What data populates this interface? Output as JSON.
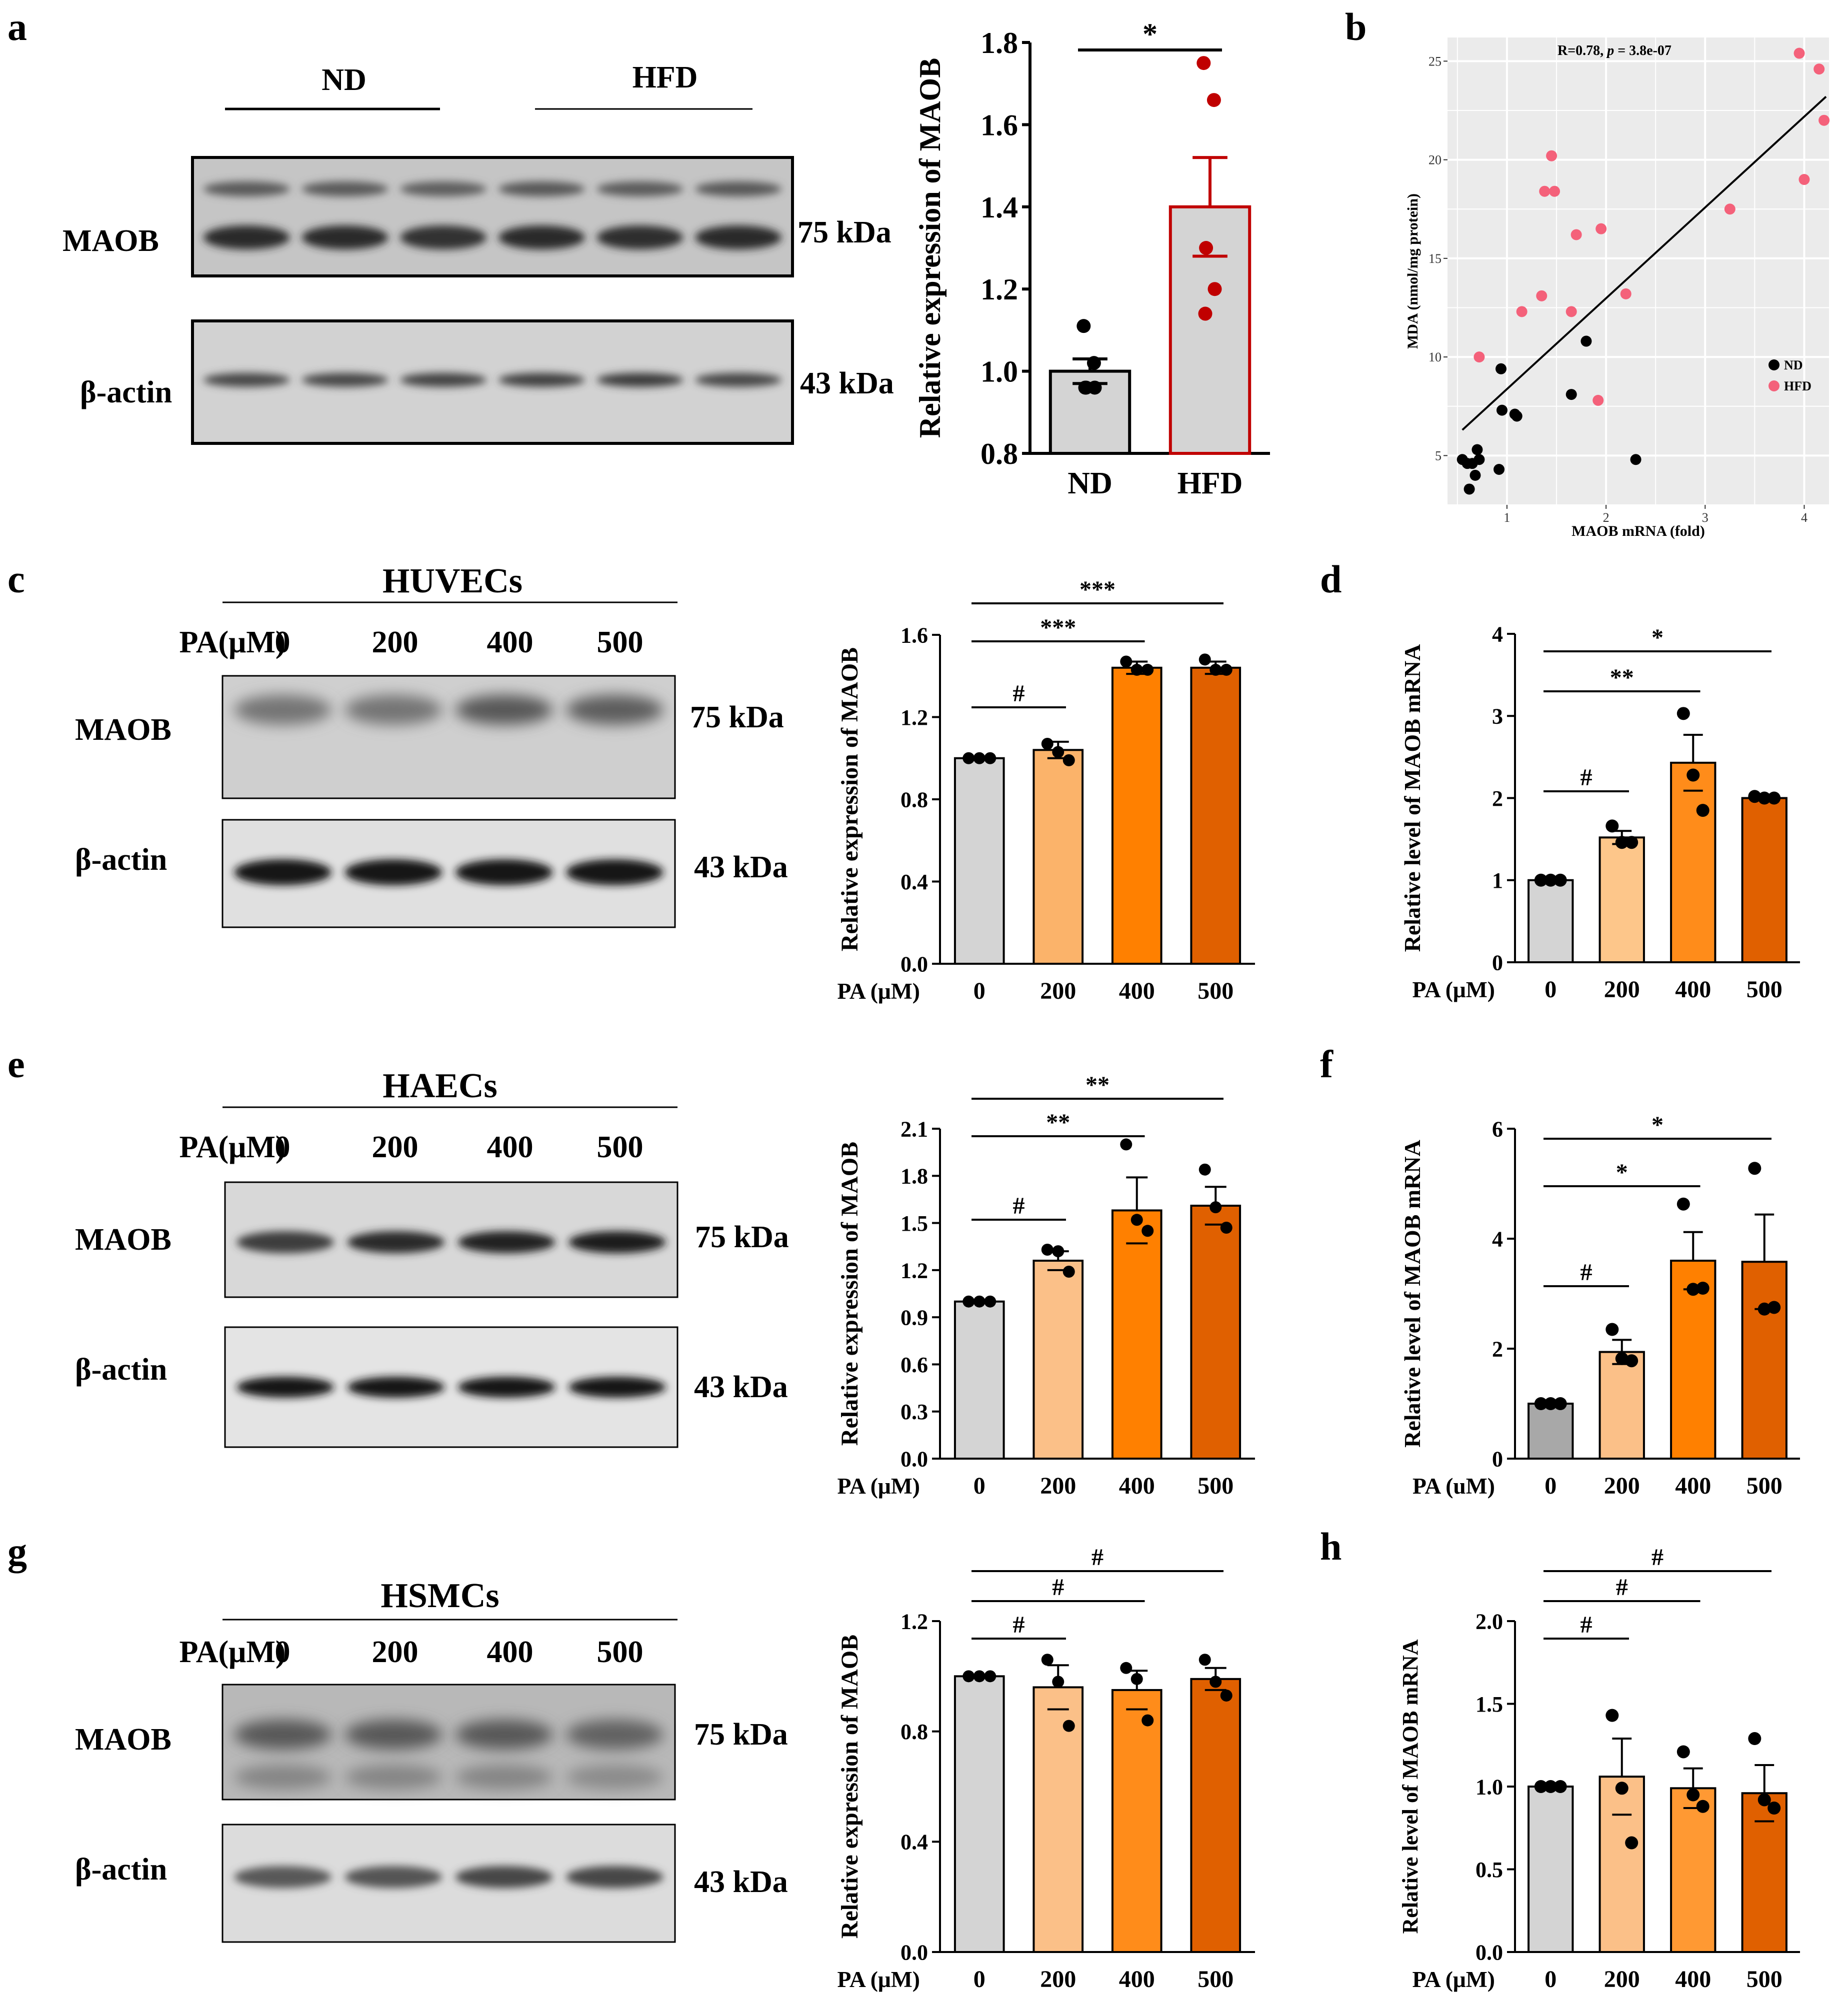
{
  "panel_letters": [
    "a",
    "b",
    "c",
    "d",
    "e",
    "f",
    "g",
    "h"
  ],
  "units": {
    "kda_75": "75 kDa",
    "kda_43": "43 kDa"
  },
  "blots": {
    "a": {
      "groups": [
        "ND",
        "HFD"
      ],
      "rows": [
        "MAOB",
        "β-actin"
      ],
      "maob_intensity": [
        0.85,
        0.85,
        0.82,
        0.86,
        0.84,
        0.86
      ],
      "actin_intensity": [
        0.7,
        0.7,
        0.72,
        0.74,
        0.76,
        0.7
      ]
    },
    "c": {
      "cell": "HUVECs",
      "pa_label": "PA(μM)",
      "conc": [
        "0",
        "200",
        "400",
        "500"
      ],
      "rows": [
        "MAOB",
        "β-actin"
      ],
      "maob_intensity": [
        0.45,
        0.45,
        0.6,
        0.58
      ],
      "actin_intensity": [
        0.95,
        0.95,
        0.95,
        0.95
      ]
    },
    "e": {
      "cell": "HAECs",
      "pa_label": "PA(μM)",
      "conc": [
        "0",
        "200",
        "400",
        "500"
      ],
      "rows": [
        "MAOB",
        "β-actin"
      ],
      "maob_intensity": [
        0.75,
        0.85,
        0.9,
        0.92
      ],
      "actin_intensity": [
        0.95,
        0.95,
        0.95,
        0.95
      ]
    },
    "g": {
      "cell": "HSMCs",
      "pa_label": "PA(μM)",
      "conc": [
        "0",
        "200",
        "400",
        "500"
      ],
      "rows": [
        "MAOB",
        "β-actin"
      ],
      "maob_intensity": [
        0.6,
        0.6,
        0.6,
        0.55
      ],
      "actin_intensity": [
        0.6,
        0.62,
        0.7,
        0.7
      ]
    }
  },
  "chart_data": [
    {
      "id": "a_bar",
      "type": "bar",
      "ylabel": "Relative expression of MAOB",
      "categories": [
        "ND",
        "HFD"
      ],
      "values": [
        1.0,
        1.4
      ],
      "sem": [
        0.03,
        0.12
      ],
      "ylim": [
        0.8,
        1.8
      ],
      "yticks": [
        "0.8",
        "1.0",
        "1.2",
        "1.4",
        "1.6",
        "1.8"
      ],
      "points": [
        [
          1.11,
          1.02,
          0.96,
          0.96,
          0.96
        ],
        [
          1.75,
          1.66,
          1.3,
          1.2,
          1.14
        ]
      ],
      "fill": [
        "#d4d4d4",
        "#d4d4d4"
      ],
      "edge": [
        "#000000",
        "#c00000"
      ],
      "point_colors": [
        "#000000",
        "#c00000"
      ],
      "sig": [
        {
          "from": 0,
          "to": 1,
          "label": "*"
        }
      ]
    },
    {
      "id": "b_scatter",
      "type": "scatter",
      "annotation_prefix": "R=0.78, ",
      "annotation_p": "p",
      "annotation_suffix": " = 3.8e-07",
      "xlabel": "MAOB mRNA (fold)",
      "ylabel": "MDA (nmol/mg protein)",
      "xlim": [
        0.4,
        4.25
      ],
      "ylim": [
        2.5,
        26.2
      ],
      "xticks": [
        "1",
        "2",
        "3",
        "4"
      ],
      "yticks": [
        "5",
        "10",
        "15",
        "20",
        "25"
      ],
      "legend": [
        "ND",
        "HFD"
      ],
      "legend_colors": [
        "#000000",
        "#f4617a"
      ],
      "fit": {
        "x1": 0.55,
        "y1": 6.3,
        "x2": 4.22,
        "y2": 23.2
      },
      "series": [
        {
          "name": "ND",
          "x": [
            0.55,
            0.6,
            0.65,
            0.7,
            0.68,
            0.62,
            0.72,
            0.92,
            0.95,
            1.08,
            0.94,
            1.1,
            1.65,
            1.8,
            2.3
          ],
          "y": [
            4.8,
            4.6,
            4.6,
            5.3,
            4.0,
            3.3,
            4.8,
            4.3,
            7.3,
            7.1,
            9.4,
            7.0,
            8.1,
            10.8,
            4.8
          ]
        },
        {
          "name": "HFD",
          "x": [
            0.72,
            1.15,
            1.35,
            1.38,
            1.45,
            1.48,
            1.65,
            1.7,
            1.92,
            1.95,
            2.2,
            3.25,
            3.95,
            4.0,
            4.15,
            4.2
          ],
          "y": [
            10.0,
            12.3,
            13.1,
            18.4,
            20.2,
            18.4,
            12.3,
            16.2,
            7.8,
            16.5,
            13.2,
            17.5,
            25.4,
            19.0,
            24.6,
            22.0
          ]
        }
      ]
    },
    {
      "id": "c_bar",
      "type": "bar",
      "ylabel": "Relative expression of MAOB",
      "xprefix": "PA (μM)",
      "categories": [
        "0",
        "200",
        "400",
        "500"
      ],
      "values": [
        1.0,
        1.04,
        1.44,
        1.44
      ],
      "sem": [
        0.0,
        0.04,
        0.03,
        0.03
      ],
      "ylim": [
        0.0,
        1.6
      ],
      "yticks": [
        "0.0",
        "0.4",
        "0.8",
        "1.2",
        "1.6"
      ],
      "points": [
        [
          1.0,
          1.0,
          1.0
        ],
        [
          1.07,
          1.03,
          0.99
        ],
        [
          1.47,
          1.43,
          1.43
        ],
        [
          1.48,
          1.43,
          1.43
        ]
      ],
      "fill": [
        "#d4d4d4",
        "#fbb36a",
        "#ff8000",
        "#e06000"
      ],
      "sig": [
        {
          "from": 0,
          "to": 1,
          "label": "#"
        },
        {
          "from": 0,
          "to": 2,
          "label": "***"
        },
        {
          "from": 0,
          "to": 3,
          "label": "***"
        }
      ]
    },
    {
      "id": "d_bar",
      "type": "bar",
      "ylabel": "Relative level of MAOB mRNA",
      "xprefix": "PA (μM)",
      "categories": [
        "0",
        "200",
        "400",
        "500"
      ],
      "values": [
        1.0,
        1.52,
        2.43,
        2.0
      ],
      "sem": [
        0.0,
        0.08,
        0.34,
        0.02
      ],
      "ylim": [
        0,
        4
      ],
      "yticks": [
        "0",
        "1",
        "2",
        "3",
        "4"
      ],
      "points": [
        [
          1.0,
          1.0,
          1.0
        ],
        [
          1.66,
          1.46,
          1.46
        ],
        [
          3.03,
          2.28,
          1.85
        ],
        [
          2.02,
          2.0,
          2.0
        ]
      ],
      "fill": [
        "#d4d4d4",
        "#fdc68a",
        "#ff8c1a",
        "#e06000"
      ],
      "sig": [
        {
          "from": 0,
          "to": 1,
          "label": "#"
        },
        {
          "from": 0,
          "to": 2,
          "label": "**"
        },
        {
          "from": 0,
          "to": 3,
          "label": "*"
        }
      ]
    },
    {
      "id": "e_bar",
      "type": "bar",
      "ylabel": "Relative expression of MAOB",
      "xprefix": "PA (μM)",
      "categories": [
        "0",
        "200",
        "400",
        "500"
      ],
      "values": [
        1.0,
        1.26,
        1.58,
        1.61
      ],
      "sem": [
        0.0,
        0.06,
        0.21,
        0.12
      ],
      "ylim": [
        0.0,
        2.1
      ],
      "yticks": [
        "0.0",
        "0.3",
        "0.6",
        "0.9",
        "1.2",
        "1.5",
        "1.8",
        "2.1"
      ],
      "points": [
        [
          1.0,
          1.0,
          1.0
        ],
        [
          1.33,
          1.32,
          1.19
        ],
        [
          2.0,
          1.52,
          1.45
        ],
        [
          1.84,
          1.6,
          1.47
        ]
      ],
      "fill": [
        "#d4d4d4",
        "#fbc088",
        "#ff8000",
        "#e06000"
      ],
      "sig": [
        {
          "from": 0,
          "to": 1,
          "label": "#"
        },
        {
          "from": 0,
          "to": 2,
          "label": "**"
        },
        {
          "from": 0,
          "to": 3,
          "label": "**"
        }
      ]
    },
    {
      "id": "f_bar",
      "type": "bar",
      "ylabel": "Relative level of MAOB mRNA",
      "xprefix": "PA (uM)",
      "categories": [
        "0",
        "200",
        "400",
        "500"
      ],
      "values": [
        1.0,
        1.94,
        3.6,
        3.58
      ],
      "sem": [
        0.0,
        0.22,
        0.52,
        0.86
      ],
      "ylim": [
        0,
        6
      ],
      "yticks": [
        "0",
        "2",
        "4",
        "6"
      ],
      "points": [
        [
          1.0,
          1.0,
          1.0
        ],
        [
          2.35,
          1.82,
          1.78
        ],
        [
          4.63,
          3.08,
          3.1
        ],
        [
          5.28,
          2.72,
          2.75
        ]
      ],
      "fill": [
        "#a8a8a8",
        "#fbc088",
        "#ff8000",
        "#e06000"
      ],
      "sig": [
        {
          "from": 0,
          "to": 1,
          "label": "#"
        },
        {
          "from": 0,
          "to": 2,
          "label": "*"
        },
        {
          "from": 0,
          "to": 3,
          "label": "*"
        }
      ]
    },
    {
      "id": "g_bar",
      "type": "bar",
      "ylabel": "Relative expression of MAOB",
      "xprefix": "PA (μM)",
      "categories": [
        "0",
        "200",
        "400",
        "500"
      ],
      "values": [
        1.0,
        0.96,
        0.95,
        0.99
      ],
      "sem": [
        0.0,
        0.08,
        0.07,
        0.04
      ],
      "ylim": [
        0.0,
        1.2
      ],
      "yticks": [
        "0.0",
        "0.4",
        "0.8",
        "1.2"
      ],
      "points": [
        [
          1.0,
          1.0,
          1.0
        ],
        [
          1.06,
          0.98,
          0.82
        ],
        [
          1.03,
          0.99,
          0.84
        ],
        [
          1.06,
          0.98,
          0.93
        ]
      ],
      "fill": [
        "#d4d4d4",
        "#fbc088",
        "#ff8c1a",
        "#e06000"
      ],
      "sig": [
        {
          "from": 0,
          "to": 1,
          "label": "#"
        },
        {
          "from": 0,
          "to": 2,
          "label": "#"
        },
        {
          "from": 0,
          "to": 3,
          "label": "#"
        }
      ]
    },
    {
      "id": "h_bar",
      "type": "bar",
      "ylabel": "Relative level of MAOB mRNA",
      "xprefix": "PA (μM)",
      "categories": [
        "0",
        "200",
        "400",
        "500"
      ],
      "values": [
        1.0,
        1.06,
        0.99,
        0.96
      ],
      "sem": [
        0.0,
        0.23,
        0.12,
        0.17
      ],
      "ylim": [
        0.0,
        2.0
      ],
      "yticks": [
        "0.0",
        "0.5",
        "1.0",
        "1.5",
        "2.0"
      ],
      "points": [
        [
          1.0,
          1.0,
          1.0
        ],
        [
          1.43,
          0.99,
          0.66
        ],
        [
          1.21,
          0.95,
          0.88
        ],
        [
          1.29,
          0.92,
          0.87
        ]
      ],
      "fill": [
        "#d4d4d4",
        "#fbc088",
        "#ff9933",
        "#e06000"
      ],
      "sig": [
        {
          "from": 0,
          "to": 1,
          "label": "#"
        },
        {
          "from": 0,
          "to": 2,
          "label": "#"
        },
        {
          "from": 0,
          "to": 3,
          "label": "#"
        }
      ]
    }
  ]
}
